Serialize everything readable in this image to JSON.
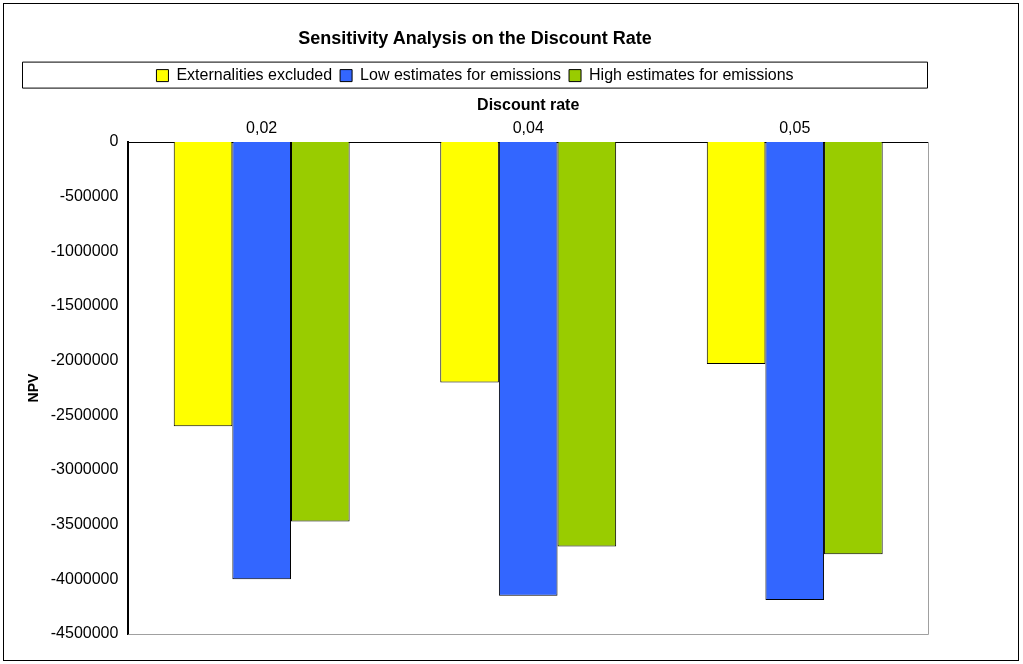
{
  "chart_data": {
    "type": "bar",
    "title": "Sensitivity Analysis on the Discount Rate",
    "xlabel": "Discount rate",
    "ylabel": "NPV",
    "categories": [
      "0,02",
      "0,04",
      "0,05"
    ],
    "series": [
      {
        "name": "Externalities excluded",
        "color": "#ffff00",
        "values": [
          -2600000,
          -2200000,
          -2030000
        ]
      },
      {
        "name": "Low estimates for emissions",
        "color": "#3366ff",
        "values": [
          -4000000,
          -4150000,
          -4190000
        ]
      },
      {
        "name": "High estimates for emissions",
        "color": "#99cc00",
        "values": [
          -3470000,
          -3700000,
          -3770000
        ]
      }
    ],
    "ylim": [
      -4500000,
      0
    ],
    "yticks": [
      0,
      -500000,
      -1000000,
      -1500000,
      -2000000,
      -2500000,
      -3000000,
      -3500000,
      -4000000,
      -4500000
    ],
    "grid": false,
    "legend": "top"
  }
}
